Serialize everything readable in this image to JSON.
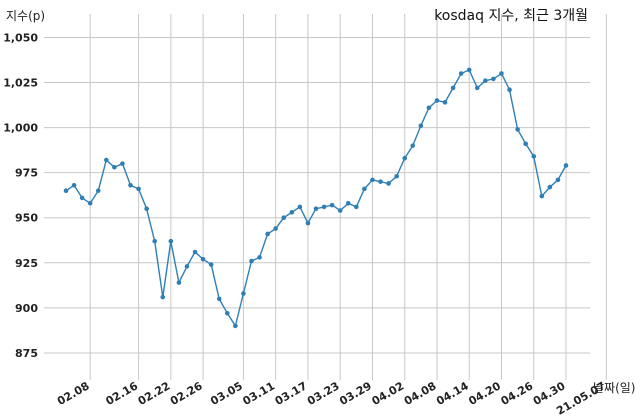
{
  "chart_data": {
    "type": "line",
    "title": "kosdaq 지수, 최근 3개월",
    "xlabel": "날짜(일)",
    "ylabel": "지수(p)",
    "ylim": [
      860,
      1063
    ],
    "y_ticks": [
      875,
      900,
      925,
      950,
      975,
      1000,
      1025,
      1050
    ],
    "y_tick_labels": [
      "875",
      "900",
      "925",
      "950",
      "975",
      "1,000",
      "1,025",
      "1,050"
    ],
    "x_tick_labels": [
      "02.08",
      "02.16",
      "02.22",
      "02.26",
      "03.05",
      "03.11",
      "03.17",
      "03.23",
      "03.29",
      "04.02",
      "04.08",
      "04.14",
      "04.20",
      "04.26",
      "04.30",
      "21.05.07"
    ],
    "x_tick_index": [
      3,
      9,
      13,
      17,
      22,
      26,
      30,
      34,
      38,
      42,
      46,
      50,
      54,
      58,
      62,
      67
    ],
    "grid": true,
    "color": "#2f7fb5",
    "series": [
      {
        "values": [
          965,
          968,
          961,
          958,
          965,
          982,
          978,
          980,
          968,
          966,
          955,
          937,
          906,
          937,
          914,
          923,
          931,
          927,
          924,
          905,
          897,
          890,
          908,
          926,
          928,
          941,
          944,
          950,
          953,
          956,
          947,
          955,
          956,
          957,
          954,
          958,
          956,
          966,
          971,
          970,
          969,
          973,
          983,
          990,
          1001,
          1011,
          1015,
          1014,
          1022,
          1030,
          1032,
          1022,
          1026,
          1027,
          1030,
          1021,
          999,
          991,
          984,
          962,
          967,
          971,
          979
        ]
      }
    ]
  }
}
